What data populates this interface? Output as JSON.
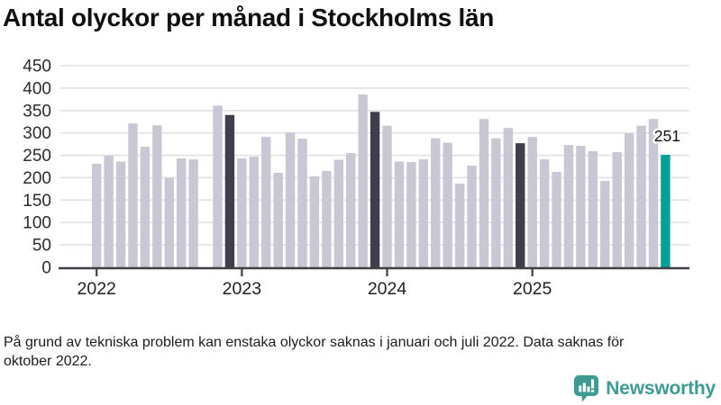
{
  "title": "Antal olyckor per månad i Stockholms län",
  "footnote": "På grund av tekniska problem kan enstaka olyckor saknas i januari och juli 2022. Data saknas för oktober 2022.",
  "branding": {
    "name": "Newsworthy",
    "color": "#3d9b94",
    "icon": "bar-chart-speech-bubble"
  },
  "chart_data": {
    "type": "bar",
    "title": "Antal olyckor per månad i Stockholms län",
    "xlabel": "",
    "ylabel": "",
    "ylim": [
      0,
      450
    ],
    "y_ticks": [
      0,
      50,
      100,
      150,
      200,
      250,
      300,
      350,
      400,
      450
    ],
    "grid": true,
    "legend": "none",
    "note": "October 2022 has no bar (data missing)",
    "year_ticks": [
      {
        "label": "2022",
        "index": 0
      },
      {
        "label": "2023",
        "index": 12
      },
      {
        "label": "2024",
        "index": 24
      },
      {
        "label": "2025",
        "index": 36
      }
    ],
    "annotation": {
      "label": "251",
      "month": "2025-12"
    },
    "colors": {
      "bar": "#c9c7d3",
      "dark": "#403e4d",
      "teal": "#00a096",
      "grid": "#e2e2e6",
      "axis": "#3f3f45",
      "text": "#2b2b30",
      "annotation_text": "#111111"
    },
    "series": [
      {
        "month": "2022-01",
        "value": 231
      },
      {
        "month": "2022-02",
        "value": 249
      },
      {
        "month": "2022-03",
        "value": 236
      },
      {
        "month": "2022-04",
        "value": 321
      },
      {
        "month": "2022-05",
        "value": 269
      },
      {
        "month": "2022-06",
        "value": 317
      },
      {
        "month": "2022-07",
        "value": 200
      },
      {
        "month": "2022-08",
        "value": 243
      },
      {
        "month": "2022-09",
        "value": 241
      },
      {
        "month": "2022-10",
        "value": null
      },
      {
        "month": "2022-11",
        "value": 361
      },
      {
        "month": "2022-12",
        "value": 340,
        "role": "dark"
      },
      {
        "month": "2023-01",
        "value": 243
      },
      {
        "month": "2023-02",
        "value": 247
      },
      {
        "month": "2023-03",
        "value": 291
      },
      {
        "month": "2023-04",
        "value": 211
      },
      {
        "month": "2023-05",
        "value": 301
      },
      {
        "month": "2023-06",
        "value": 287
      },
      {
        "month": "2023-07",
        "value": 203
      },
      {
        "month": "2023-08",
        "value": 215
      },
      {
        "month": "2023-09",
        "value": 240
      },
      {
        "month": "2023-10",
        "value": 255
      },
      {
        "month": "2023-11",
        "value": 386
      },
      {
        "month": "2023-12",
        "value": 347,
        "role": "dark"
      },
      {
        "month": "2024-01",
        "value": 316
      },
      {
        "month": "2024-02",
        "value": 236
      },
      {
        "month": "2024-03",
        "value": 235
      },
      {
        "month": "2024-04",
        "value": 241
      },
      {
        "month": "2024-05",
        "value": 288
      },
      {
        "month": "2024-06",
        "value": 278
      },
      {
        "month": "2024-07",
        "value": 187
      },
      {
        "month": "2024-08",
        "value": 227
      },
      {
        "month": "2024-09",
        "value": 331
      },
      {
        "month": "2024-10",
        "value": 288
      },
      {
        "month": "2024-11",
        "value": 311
      },
      {
        "month": "2024-12",
        "value": 277,
        "role": "dark"
      },
      {
        "month": "2025-01",
        "value": 291
      },
      {
        "month": "2025-02",
        "value": 241
      },
      {
        "month": "2025-03",
        "value": 213
      },
      {
        "month": "2025-04",
        "value": 273
      },
      {
        "month": "2025-05",
        "value": 271
      },
      {
        "month": "2025-06",
        "value": 259
      },
      {
        "month": "2025-07",
        "value": 193
      },
      {
        "month": "2025-08",
        "value": 257
      },
      {
        "month": "2025-09",
        "value": 299
      },
      {
        "month": "2025-10",
        "value": 316
      },
      {
        "month": "2025-11",
        "value": 331
      },
      {
        "month": "2025-12",
        "value": 251,
        "role": "teal"
      }
    ]
  }
}
